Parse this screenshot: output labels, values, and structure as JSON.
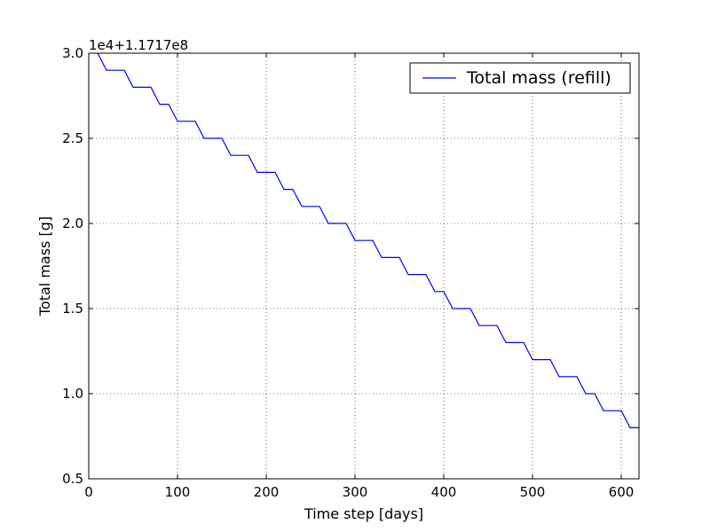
{
  "chart_data": {
    "type": "line",
    "xlabel": "Time step [days]",
    "ylabel": "Total mass [g]",
    "y_offset_label": "1e4+1.1717e8",
    "xlim": [
      0,
      620
    ],
    "ylim": [
      0.5,
      3.0
    ],
    "xticks": [
      0,
      100,
      200,
      300,
      400,
      500,
      600
    ],
    "xtick_labels": [
      "0",
      "100",
      "200",
      "300",
      "400",
      "500",
      "600"
    ],
    "yticks": [
      0.5,
      1.0,
      1.5,
      2.0,
      2.5,
      3.0
    ],
    "ytick_labels": [
      "0.5",
      "1.0",
      "1.5",
      "2.0",
      "2.5",
      "3.0"
    ],
    "grid": true,
    "legend_position": "top-right",
    "series": [
      {
        "name": "Total mass (refill)",
        "color": "#0000ff",
        "x": [
          10,
          20,
          40,
          50,
          70,
          80,
          90,
          100,
          120,
          130,
          150,
          160,
          180,
          190,
          210,
          220,
          230,
          240,
          260,
          270,
          290,
          300,
          320,
          330,
          350,
          360,
          380,
          390,
          400,
          410,
          430,
          440,
          460,
          470,
          490,
          500,
          520,
          530,
          550,
          560,
          570,
          580,
          600,
          610,
          620
        ],
        "y": [
          3.0,
          2.9,
          2.9,
          2.8,
          2.8,
          2.7,
          2.7,
          2.6,
          2.6,
          2.5,
          2.5,
          2.4,
          2.4,
          2.3,
          2.3,
          2.2,
          2.2,
          2.1,
          2.1,
          2.0,
          2.0,
          1.9,
          1.9,
          1.8,
          1.8,
          1.7,
          1.7,
          1.6,
          1.6,
          1.5,
          1.5,
          1.4,
          1.4,
          1.3,
          1.3,
          1.2,
          1.2,
          1.1,
          1.1,
          1.0,
          1.0,
          0.9,
          0.9,
          0.8,
          0.8
        ]
      }
    ]
  }
}
